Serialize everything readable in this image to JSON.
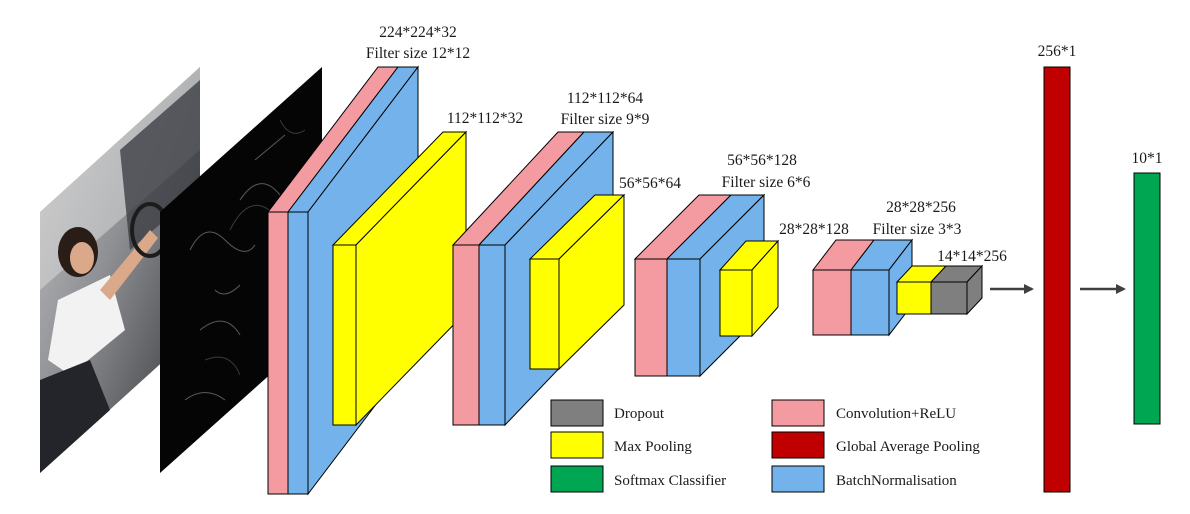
{
  "colors": {
    "convolution_relu": "#F49AA1",
    "batch_normalisation": "#73B2EA",
    "max_pooling": "#FFFF00",
    "dropout": "#7F7F7F",
    "global_average_pooling": "#C00000",
    "softmax_classifier": "#00A651",
    "arrow": "#404040"
  },
  "inputs": [
    {
      "name": "driver-photo",
      "description": ""
    },
    {
      "name": "edge-map",
      "description": ""
    }
  ],
  "blocks": [
    {
      "size_label": "224*224*32",
      "filter_label": "Filter size 12*12",
      "pool_label": "112*112*32"
    },
    {
      "size_label": "112*112*64",
      "filter_label": "Filter size 9*9",
      "pool_label": "56*56*64"
    },
    {
      "size_label": "56*56*128",
      "filter_label": "Filter size 6*6",
      "pool_label": "28*28*128"
    },
    {
      "size_label": "28*28*256",
      "filter_label": "Filter size 3*3",
      "pool_label": "14*14*256"
    }
  ],
  "dense": [
    {
      "label": "256*1"
    },
    {
      "label": "10*1"
    }
  ],
  "legend": [
    {
      "label": "Dropout",
      "color": "#7F7F7F"
    },
    {
      "label": "Max Pooling",
      "color": "#FFFF00"
    },
    {
      "label": "Softmax Classifier",
      "color": "#00A651"
    },
    {
      "label": "Convolution+ReLU",
      "color": "#F49AA1"
    },
    {
      "label": "Global Average Pooling",
      "color": "#C00000"
    },
    {
      "label": "BatchNormalisation",
      "color": "#73B2EA"
    }
  ]
}
